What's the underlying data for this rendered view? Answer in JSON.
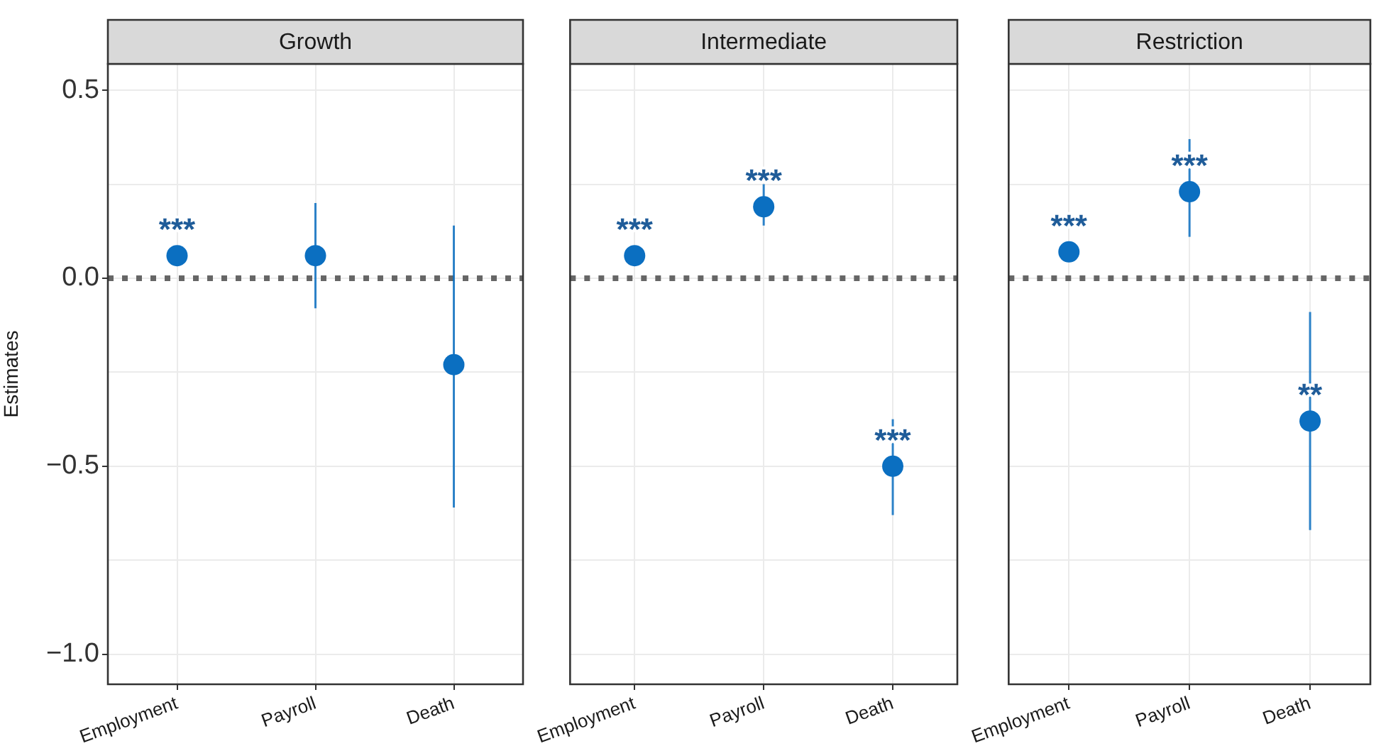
{
  "chart_data": [
    {
      "type": "scatter",
      "title": "Growth",
      "ylabel": "Estimates",
      "categories": [
        "Employment",
        "Payroll",
        "Death"
      ],
      "values": [
        0.06,
        0.06,
        -0.23
      ],
      "errors": [
        null,
        [
          -0.08,
          0.2
        ],
        [
          -0.61,
          0.14
        ]
      ],
      "color": "#0b6fc1",
      "marker": "circle",
      "grid": true,
      "ylim": [
        -1.08,
        0.57
      ],
      "yticks": [
        {
          "value": -1,
          "label": "−1.0"
        },
        {
          "value": -0.75,
          "label": null
        },
        {
          "value": -0.5,
          "label": "−0.5"
        },
        {
          "value": -0.25,
          "label": null
        },
        {
          "value": 0,
          "label": "0.0"
        },
        {
          "value": 0.25,
          "label": null
        },
        {
          "value": 0.5,
          "label": "0.5"
        }
      ],
      "ref_lines": [
        {
          "axis": "y",
          "value": 0,
          "label": null,
          "color": "#666666",
          "line_style": "dotted"
        }
      ],
      "annotations": [
        {
          "text": "***",
          "x": "Employment",
          "y": 0.06
        }
      ]
    },
    {
      "type": "scatter",
      "title": "Intermediate",
      "categories": [
        "Employment",
        "Payroll",
        "Death"
      ],
      "values": [
        0.06,
        0.19,
        -0.5
      ],
      "errors": [
        null,
        [
          0.14,
          0.25
        ],
        [
          -0.63,
          -0.375
        ]
      ],
      "color": "#0b6fc1",
      "marker": "circle",
      "grid": true,
      "ylim": [
        -1.08,
        0.57
      ],
      "tick_labels": "x",
      "yticks": [
        {
          "value": -1,
          "label": null
        },
        {
          "value": -0.75,
          "label": null
        },
        {
          "value": -0.5,
          "label": null
        },
        {
          "value": -0.25,
          "label": null
        },
        {
          "value": 0,
          "label": null
        },
        {
          "value": 0.25,
          "label": null
        },
        {
          "value": 0.5,
          "label": null
        }
      ],
      "ref_lines": [
        {
          "axis": "y",
          "value": 0,
          "label": null,
          "color": "#666666",
          "line_style": "dotted"
        }
      ],
      "annotations": [
        {
          "text": "***",
          "x": "Employment",
          "y": 0.06
        },
        {
          "text": "***",
          "x": "Payroll",
          "y": 0.19
        },
        {
          "text": "***",
          "x": "Death",
          "y": -0.5
        }
      ]
    },
    {
      "type": "scatter",
      "title": "Restriction",
      "categories": [
        "Employment",
        "Payroll",
        "Death"
      ],
      "values": [
        0.07,
        0.23,
        -0.38
      ],
      "errors": [
        null,
        [
          0.11,
          0.37
        ],
        [
          -0.67,
          -0.09
        ]
      ],
      "color": "#0b6fc1",
      "marker": "circle",
      "grid": true,
      "ylim": [
        -1.08,
        0.57
      ],
      "tick_labels": "x",
      "yticks": [
        {
          "value": -1,
          "label": null
        },
        {
          "value": -0.75,
          "label": null
        },
        {
          "value": -0.5,
          "label": null
        },
        {
          "value": -0.25,
          "label": null
        },
        {
          "value": 0,
          "label": null
        },
        {
          "value": 0.25,
          "label": null
        },
        {
          "value": 0.5,
          "label": null
        }
      ],
      "ref_lines": [
        {
          "axis": "y",
          "value": 0,
          "label": null,
          "color": "#666666",
          "line_style": "dotted"
        }
      ],
      "annotations": [
        {
          "text": "***",
          "x": "Employment",
          "y": 0.07
        },
        {
          "text": "***",
          "x": "Payroll",
          "y": 0.23
        },
        {
          "text": "**",
          "x": "Death",
          "y": -0.38
        }
      ]
    }
  ]
}
